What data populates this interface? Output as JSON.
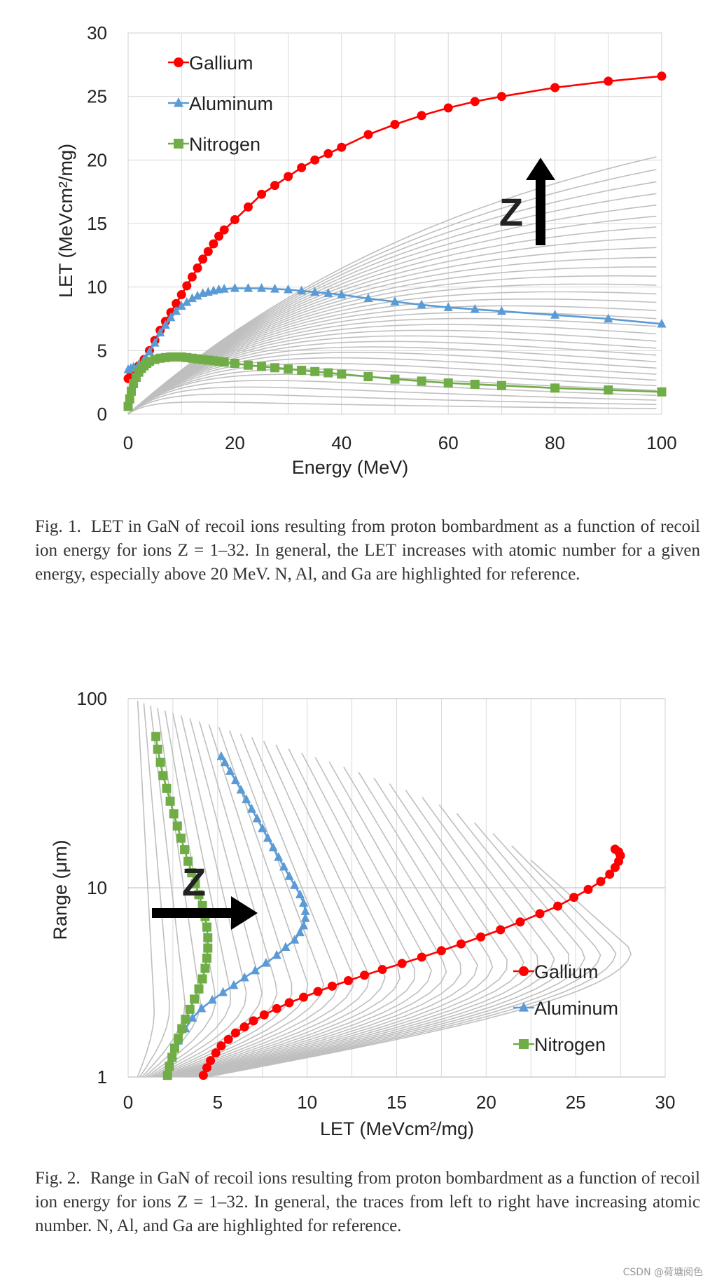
{
  "chart_data": [
    {
      "type": "line",
      "figure_label": "Fig. 1.",
      "caption": "LET in GaN of recoil ions resulting from proton bombardment as a function of recoil ion energy for ions Z = 1–32. In general, the LET increases with atomic number for a given energy, especially above 20 MeV. N, Al, and Ga are highlighted for reference.",
      "xlabel": "Energy (MeV)",
      "ylabel": "LET (MeVcm²/mg)",
      "xlim": [
        0,
        100
      ],
      "ylim": [
        0,
        30
      ],
      "xticks": [
        "0",
        "20",
        "40",
        "60",
        "80",
        "100"
      ],
      "yticks": [
        "0",
        "5",
        "10",
        "15",
        "20",
        "25",
        "30"
      ],
      "grid": true,
      "legend_position": "top-left",
      "annotation": "Z",
      "series": [
        {
          "name": "Gallium",
          "color": "#ff0000",
          "marker": "circle",
          "x": [
            0,
            0.5,
            1,
            2,
            3,
            4,
            5,
            6,
            7,
            8,
            9,
            10,
            11,
            12,
            13,
            14,
            15,
            16,
            17,
            18,
            20,
            22.5,
            25,
            27.5,
            30,
            32.5,
            35,
            37.5,
            40,
            45,
            50,
            55,
            60,
            65,
            70,
            80,
            90,
            100
          ],
          "y": [
            2.8,
            3.0,
            3.3,
            3.8,
            4.3,
            5.0,
            5.8,
            6.6,
            7.3,
            8.0,
            8.7,
            9.4,
            10.1,
            10.8,
            11.5,
            12.2,
            12.8,
            13.4,
            14.0,
            14.5,
            15.3,
            16.3,
            17.3,
            18.0,
            18.7,
            19.4,
            20.0,
            20.5,
            21.0,
            22.0,
            22.8,
            23.5,
            24.1,
            24.6,
            25.0,
            25.7,
            26.2,
            26.6
          ]
        },
        {
          "name": "Aluminum",
          "color": "#5b9bd5",
          "marker": "triangle",
          "x": [
            0,
            0.5,
            1,
            2,
            3,
            4,
            5,
            6,
            7,
            8,
            9,
            10,
            11,
            12,
            13,
            14,
            15,
            16,
            17,
            18,
            20,
            22.5,
            25,
            27.5,
            30,
            32.5,
            35,
            37.5,
            40,
            45,
            50,
            55,
            60,
            65,
            70,
            80,
            90,
            100
          ],
          "y": [
            3.5,
            3.6,
            3.7,
            3.9,
            4.3,
            4.9,
            5.6,
            6.4,
            7.0,
            7.6,
            8.1,
            8.5,
            8.8,
            9.1,
            9.3,
            9.5,
            9.6,
            9.7,
            9.8,
            9.85,
            9.9,
            9.9,
            9.9,
            9.85,
            9.8,
            9.7,
            9.6,
            9.5,
            9.4,
            9.1,
            8.85,
            8.6,
            8.4,
            8.25,
            8.1,
            7.8,
            7.5,
            7.1
          ]
        },
        {
          "name": "Nitrogen",
          "color": "#70ad47",
          "marker": "square",
          "x": [
            0,
            0.3,
            0.6,
            1,
            1.5,
            2,
            2.5,
            3,
            3.5,
            4,
            5,
            6,
            7,
            8,
            9,
            10,
            11,
            12,
            13,
            14,
            15,
            16,
            17,
            18,
            20,
            22.5,
            25,
            27.5,
            30,
            32.5,
            35,
            37.5,
            40,
            45,
            50,
            55,
            60,
            65,
            70,
            80,
            90,
            100
          ],
          "y": [
            0.6,
            1.2,
            1.8,
            2.4,
            2.9,
            3.3,
            3.6,
            3.8,
            4.0,
            4.15,
            4.3,
            4.4,
            4.45,
            4.5,
            4.5,
            4.5,
            4.45,
            4.4,
            4.35,
            4.3,
            4.25,
            4.2,
            4.15,
            4.1,
            4.0,
            3.85,
            3.75,
            3.65,
            3.55,
            3.45,
            3.35,
            3.25,
            3.15,
            2.95,
            2.75,
            2.6,
            2.45,
            2.35,
            2.25,
            2.05,
            1.9,
            1.75
          ]
        }
      ]
    },
    {
      "type": "line",
      "figure_label": "Fig. 2.",
      "caption": "Range in GaN of recoil ions resulting from proton bombardment as a function of recoil ion energy for ions Z = 1–32. In general, the traces from left to right have increasing atomic number. N, Al, and Ga are highlighted for reference.",
      "xlabel": "LET (MeVcm²/mg)",
      "ylabel": "Range (μm)",
      "xlim": [
        0,
        30
      ],
      "ylim": [
        1,
        100
      ],
      "yscale": "log",
      "xticks": [
        "0",
        "5",
        "10",
        "15",
        "20",
        "25",
        "30"
      ],
      "yticks": [
        "1",
        "10",
        "100"
      ],
      "grid": true,
      "legend_position": "bottom-right",
      "annotation": "Z",
      "series": [
        {
          "name": "Gallium",
          "color": "#ff0000",
          "marker": "circle",
          "x": [
            4.2,
            4.4,
            4.6,
            4.9,
            5.2,
            5.6,
            6.0,
            6.5,
            7.0,
            7.6,
            8.3,
            9.0,
            9.8,
            10.6,
            11.4,
            12.3,
            13.2,
            14.2,
            15.3,
            16.4,
            17.5,
            18.6,
            19.7,
            20.8,
            21.9,
            23.0,
            24.0,
            24.9,
            25.7,
            26.4,
            26.9,
            27.2,
            27.4,
            27.5,
            27.4,
            27.2
          ],
          "y": [
            1.02,
            1.12,
            1.22,
            1.34,
            1.46,
            1.58,
            1.71,
            1.84,
            1.98,
            2.13,
            2.3,
            2.47,
            2.64,
            2.83,
            3.02,
            3.23,
            3.45,
            3.7,
            3.98,
            4.3,
            4.65,
            5.05,
            5.5,
            6.0,
            6.6,
            7.3,
            8.0,
            8.9,
            9.8,
            10.8,
            11.8,
            12.8,
            13.8,
            14.8,
            15.5,
            16.0
          ]
        },
        {
          "name": "Aluminum",
          "color": "#5b9bd5",
          "marker": "triangle",
          "x": [
            2.2,
            2.5,
            2.8,
            3.2,
            3.6,
            4.1,
            4.7,
            5.3,
            5.9,
            6.5,
            7.1,
            7.7,
            8.3,
            8.8,
            9.3,
            9.6,
            9.8,
            9.9,
            9.9,
            9.8,
            9.6,
            9.3,
            9.0,
            8.7,
            8.4,
            8.1,
            7.8,
            7.5,
            7.2,
            6.9,
            6.6,
            6.3,
            6.0,
            5.7,
            5.4,
            5.2
          ],
          "y": [
            1.05,
            1.3,
            1.55,
            1.8,
            2.05,
            2.3,
            2.55,
            2.8,
            3.05,
            3.35,
            3.65,
            4.0,
            4.4,
            4.85,
            5.3,
            5.8,
            6.3,
            6.9,
            7.5,
            8.3,
            9.2,
            10.3,
            11.5,
            12.9,
            14.5,
            16.3,
            18.3,
            20.6,
            23.2,
            26.1,
            29.3,
            32.9,
            36.9,
            41.3,
            46.0,
            49.5
          ]
        },
        {
          "name": "Nitrogen",
          "color": "#70ad47",
          "marker": "square",
          "x": [
            2.2,
            2.3,
            2.45,
            2.6,
            2.8,
            3.0,
            3.2,
            3.45,
            3.7,
            3.95,
            4.15,
            4.3,
            4.4,
            4.45,
            4.45,
            4.4,
            4.3,
            4.15,
            3.95,
            3.75,
            3.55,
            3.35,
            3.15,
            2.95,
            2.75,
            2.55,
            2.35,
            2.15,
            1.95,
            1.8,
            1.65,
            1.55
          ],
          "y": [
            1.02,
            1.14,
            1.27,
            1.42,
            1.6,
            1.8,
            2.02,
            2.28,
            2.58,
            2.92,
            3.3,
            3.75,
            4.25,
            4.8,
            5.45,
            6.2,
            7.05,
            8.05,
            9.2,
            10.5,
            12.0,
            13.8,
            15.9,
            18.3,
            21.2,
            24.6,
            28.7,
            33.5,
            39.2,
            46.0,
            54.0,
            63.0
          ]
        }
      ]
    }
  ],
  "watermark": "CSDN @荷塘阅色",
  "colors": {
    "background_curves": "#bfbfbf",
    "grid": "#d9d9d9"
  }
}
